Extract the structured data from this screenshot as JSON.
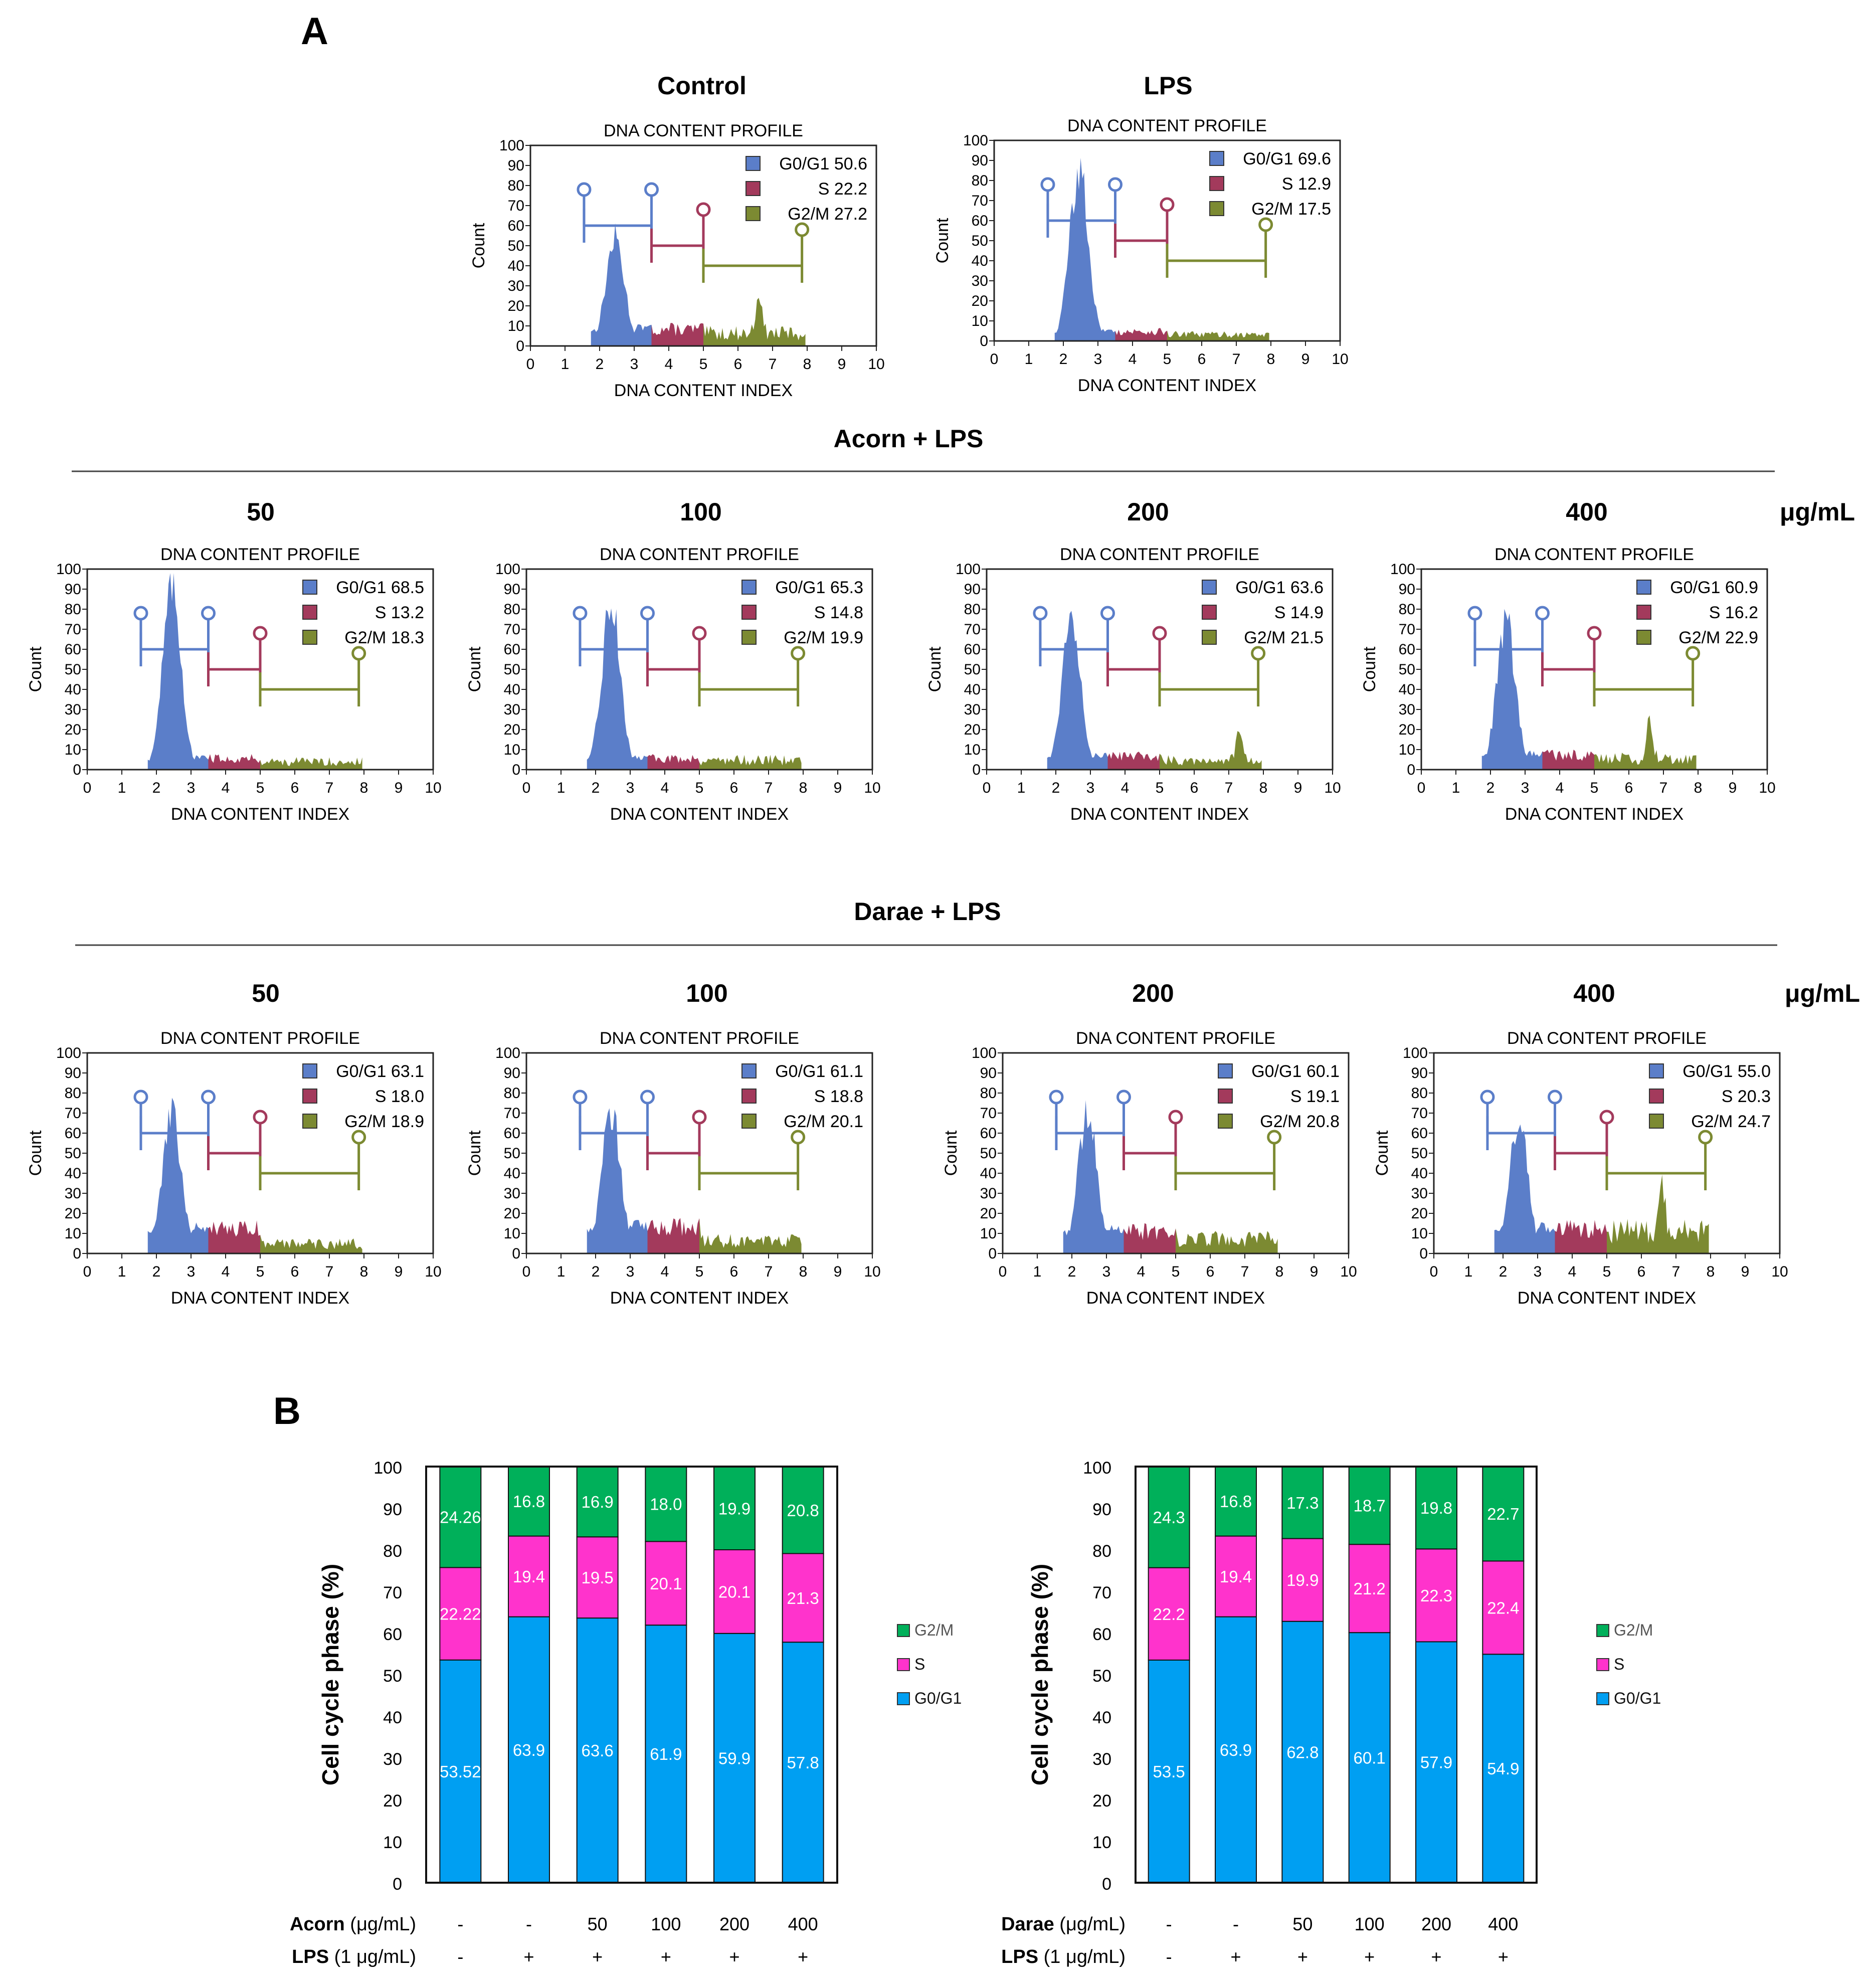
{
  "panel_a_label": "A",
  "panel_b_label": "B",
  "top_titles": [
    "Control",
    "LPS"
  ],
  "group_titles": [
    "Acorn + LPS",
    "Darae + LPS"
  ],
  "conc_labels": [
    "50",
    "100",
    "200",
    "400"
  ],
  "unit_label": "μg/mL",
  "profile_title": "DNA CONTENT PROFILE",
  "x_axis_label": "DNA CONTENT INDEX",
  "y_axis_label": "Count",
  "hist_ticks_y": [
    "0",
    "10",
    "20",
    "30",
    "40",
    "50",
    "60",
    "70",
    "80",
    "90",
    "100"
  ],
  "hist_ticks_x": [
    "0",
    "1",
    "2",
    "3",
    "4",
    "5",
    "6",
    "7",
    "8",
    "9",
    "10"
  ],
  "legend_phase_labels": [
    "G0/G1",
    "S",
    "G2/M"
  ],
  "b_y_label": "Cell cycle phase (%)",
  "b_y_ticks": [
    "0",
    "10",
    "20",
    "30",
    "40",
    "50",
    "60",
    "70",
    "80",
    "90",
    "100"
  ],
  "b_legend": [
    "G2/M",
    "S",
    "G0/G1"
  ],
  "b_row_labels": {
    "left_treat": "Acorn",
    "right_treat": "Darae",
    "treat_unit": " (μg/mL)",
    "lps": "LPS",
    "lps_unit": " (1 μg/mL)"
  },
  "colors": {
    "hist_g0g1": "#5b7ec9",
    "hist_s": "#a33a5c",
    "hist_g2m": "#7c8a32",
    "bar_g0g1": "#009ff2",
    "bar_s": "#ff33cc",
    "bar_g2m": "#00b05a"
  },
  "chart_data": [
    {
      "type": "area",
      "title": "DNA CONTENT PROFILE",
      "panel": "Control",
      "xlabel": "DNA CONTENT INDEX",
      "ylabel": "Count",
      "xlim": [
        0,
        10
      ],
      "ylim": [
        0,
        100
      ],
      "legend": [
        {
          "name": "G0/G1",
          "value": "50.6"
        },
        {
          "name": "S",
          "value": "22.2"
        },
        {
          "name": "G2/M",
          "value": "27.2"
        }
      ],
      "profile": {
        "peak": 55,
        "s": 9,
        "g2": 8,
        "spike": 20,
        "spike_x": 6.6,
        "g0end": 3.5,
        "send": 5.0
      }
    },
    {
      "type": "area",
      "title": "DNA CONTENT PROFILE",
      "panel": "LPS",
      "xlabel": "DNA CONTENT INDEX",
      "ylabel": "Count",
      "xlim": [
        0,
        10
      ],
      "ylim": [
        0,
        100
      ],
      "legend": [
        {
          "name": "G0/G1",
          "value": "69.6"
        },
        {
          "name": "S",
          "value": "12.9"
        },
        {
          "name": "G2/M",
          "value": "17.5"
        }
      ],
      "profile": {
        "peak": 88,
        "s": 5,
        "g2": 4,
        "spike": 0,
        "spike_x": 6.5,
        "g0end": 3.5,
        "send": 5.0
      }
    },
    {
      "type": "area",
      "title": "DNA CONTENT PROFILE",
      "panel": "Acorn + LPS 50 μg/mL",
      "xlabel": "DNA CONTENT INDEX",
      "ylabel": "Count",
      "xlim": [
        0,
        10
      ],
      "ylim": [
        0,
        100
      ],
      "legend": [
        {
          "name": "G0/G1",
          "value": "68.5"
        },
        {
          "name": "S",
          "value": "13.2"
        },
        {
          "name": "G2/M",
          "value": "18.3"
        }
      ],
      "profile": {
        "peak": 93,
        "s": 6,
        "g2": 5,
        "spike": 0,
        "spike_x": 6.5,
        "g0end": 3.5,
        "send": 5.0
      }
    },
    {
      "type": "area",
      "title": "DNA CONTENT PROFILE",
      "panel": "Acorn + LPS 100 μg/mL",
      "xlabel": "DNA CONTENT INDEX",
      "ylabel": "Count",
      "xlim": [
        0,
        10
      ],
      "ylim": [
        0,
        100
      ],
      "legend": [
        {
          "name": "G0/G1",
          "value": "65.3"
        },
        {
          "name": "S",
          "value": "14.8"
        },
        {
          "name": "G2/M",
          "value": "19.9"
        }
      ],
      "profile": {
        "peak": 85,
        "s": 6,
        "g2": 6,
        "spike": 0,
        "spike_x": 7.9,
        "g0end": 3.5,
        "send": 5.0
      }
    },
    {
      "type": "area",
      "title": "DNA CONTENT PROFILE",
      "panel": "Acorn + LPS 200 μg/mL",
      "xlabel": "DNA CONTENT INDEX",
      "ylabel": "Count",
      "xlim": [
        0,
        10
      ],
      "ylim": [
        0,
        100
      ],
      "legend": [
        {
          "name": "G0/G1",
          "value": "63.6"
        },
        {
          "name": "S",
          "value": "14.9"
        },
        {
          "name": "G2/M",
          "value": "21.5"
        }
      ],
      "profile": {
        "peak": 80,
        "s": 7,
        "g2": 6,
        "spike": 15,
        "spike_x": 7.3,
        "g0end": 3.5,
        "send": 5.0
      }
    },
    {
      "type": "area",
      "title": "DNA CONTENT PROFILE",
      "panel": "Acorn + LPS 400 μg/mL",
      "xlabel": "DNA CONTENT INDEX",
      "ylabel": "Count",
      "xlim": [
        0,
        10
      ],
      "ylim": [
        0,
        100
      ],
      "legend": [
        {
          "name": "G0/G1",
          "value": "60.9"
        },
        {
          "name": "S",
          "value": "16.2"
        },
        {
          "name": "G2/M",
          "value": "22.9"
        }
      ],
      "profile": {
        "peak": 75,
        "s": 8,
        "g2": 7,
        "spike": 20,
        "spike_x": 6.6,
        "g0end": 3.5,
        "send": 5.0
      }
    },
    {
      "type": "area",
      "title": "DNA CONTENT PROFILE",
      "panel": "Darae + LPS 50 μg/mL",
      "xlabel": "DNA CONTENT INDEX",
      "ylabel": "Count",
      "xlim": [
        0,
        10
      ],
      "ylim": [
        0,
        100
      ],
      "legend": [
        {
          "name": "G0/G1",
          "value": "63.1"
        },
        {
          "name": "S",
          "value": "18.0"
        },
        {
          "name": "G2/M",
          "value": "18.9"
        }
      ],
      "profile": {
        "peak": 72,
        "s": 13,
        "g2": 6,
        "spike": 0,
        "spike_x": 6.5,
        "g0end": 3.5,
        "send": 5.0
      }
    },
    {
      "type": "area",
      "title": "DNA CONTENT PROFILE",
      "panel": "Darae + LPS 100 μg/mL",
      "xlabel": "DNA CONTENT INDEX",
      "ylabel": "Count",
      "xlim": [
        0,
        10
      ],
      "ylim": [
        0,
        100
      ],
      "legend": [
        {
          "name": "G0/G1",
          "value": "61.1"
        },
        {
          "name": "S",
          "value": "18.8"
        },
        {
          "name": "G2/M",
          "value": "20.1"
        }
      ],
      "profile": {
        "peak": 75,
        "s": 14,
        "g2": 8,
        "spike": 0,
        "spike_x": 6.5,
        "g0end": 3.5,
        "send": 5.0
      }
    },
    {
      "type": "area",
      "title": "DNA CONTENT PROFILE",
      "panel": "Darae + LPS 200 μg/mL",
      "xlabel": "DNA CONTENT INDEX",
      "ylabel": "Count",
      "xlim": [
        0,
        10
      ],
      "ylim": [
        0,
        100
      ],
      "legend": [
        {
          "name": "G0/G1",
          "value": "60.1"
        },
        {
          "name": "S",
          "value": "19.1"
        },
        {
          "name": "G2/M",
          "value": "20.8"
        }
      ],
      "profile": {
        "peak": 72,
        "s": 12,
        "g2": 9,
        "spike": 0,
        "spike_x": 6.5,
        "g0end": 3.5,
        "send": 5.0
      }
    },
    {
      "type": "area",
      "title": "DNA CONTENT PROFILE",
      "panel": "Darae + LPS 400 μg/mL",
      "xlabel": "DNA CONTENT INDEX",
      "ylabel": "Count",
      "xlim": [
        0,
        10
      ],
      "ylim": [
        0,
        100
      ],
      "legend": [
        {
          "name": "G0/G1",
          "value": "55.0"
        },
        {
          "name": "S",
          "value": "20.3"
        },
        {
          "name": "G2/M",
          "value": "24.7"
        }
      ],
      "profile": {
        "peak": 68,
        "s": 13,
        "g2": 14,
        "spike": 22,
        "spike_x": 6.6,
        "g0end": 3.5,
        "send": 5.0
      }
    },
    {
      "type": "bar",
      "stacked": true,
      "title": "",
      "xlabel": "",
      "ylabel": "Cell cycle phase (%)",
      "ylim": [
        0,
        100
      ],
      "treatment": "Acorn",
      "treatment_row": [
        "-",
        "-",
        "50",
        "100",
        "200",
        "400"
      ],
      "lps_row": [
        "-",
        "+",
        "+",
        "+",
        "+",
        "+"
      ],
      "series": [
        {
          "name": "G0/G1",
          "values": [
            53.52,
            63.9,
            63.6,
            61.9,
            59.9,
            57.8
          ],
          "labels": [
            "53.52",
            "63.9",
            "63.6",
            "61.9",
            "59.9",
            "57.8"
          ]
        },
        {
          "name": "S",
          "values": [
            22.22,
            19.4,
            19.5,
            20.1,
            20.1,
            21.3
          ],
          "labels": [
            "22.22",
            "19.4",
            "19.5",
            "20.1",
            "20.1",
            "21.3"
          ]
        },
        {
          "name": "G2/M",
          "values": [
            24.26,
            16.8,
            16.9,
            18.0,
            19.9,
            20.8
          ],
          "labels": [
            "24.26",
            "16.8",
            "16.9",
            "18.0",
            "19.9",
            "20.8"
          ]
        }
      ]
    },
    {
      "type": "bar",
      "stacked": true,
      "title": "",
      "xlabel": "",
      "ylabel": "Cell cycle phase (%)",
      "ylim": [
        0,
        100
      ],
      "treatment": "Darae",
      "treatment_row": [
        "-",
        "-",
        "50",
        "100",
        "200",
        "400"
      ],
      "lps_row": [
        "-",
        "+",
        "+",
        "+",
        "+",
        "+"
      ],
      "series": [
        {
          "name": "G0/G1",
          "values": [
            53.5,
            63.9,
            62.8,
            60.1,
            57.9,
            54.9
          ],
          "labels": [
            "53.5",
            "63.9",
            "62.8",
            "60.1",
            "57.9",
            "54.9"
          ]
        },
        {
          "name": "S",
          "values": [
            22.2,
            19.4,
            19.9,
            21.2,
            22.3,
            22.4
          ],
          "labels": [
            "22.2",
            "19.4",
            "19.9",
            "21.2",
            "22.3",
            "22.4"
          ]
        },
        {
          "name": "G2/M",
          "values": [
            24.3,
            16.8,
            17.3,
            18.7,
            19.8,
            22.7
          ],
          "labels": [
            "24.3",
            "16.8",
            "17.3",
            "18.7",
            "19.8",
            "22.7"
          ]
        }
      ]
    }
  ]
}
